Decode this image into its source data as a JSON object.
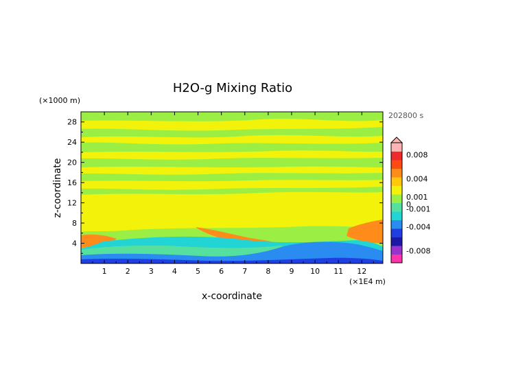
{
  "chart_data": {
    "type": "heatmap",
    "title": "H2O-g Mixing Ratio",
    "xlabel": "x-coordinate",
    "ylabel": "z-coordinate",
    "x_unit": "(×1E4 m)",
    "y_unit": "(×1000 m)",
    "time_label": "202800 s",
    "xlim": [
      0,
      12.9
    ],
    "ylim": [
      0,
      30
    ],
    "x_ticks": [
      "1",
      "2",
      "3",
      "4",
      "5",
      "6",
      "7",
      "8",
      "9",
      "10",
      "11",
      "12"
    ],
    "y_ticks": [
      "4",
      "8",
      "12",
      "16",
      "20",
      "24",
      "28"
    ],
    "colorbar": {
      "range": [
        -0.01,
        0.01
      ],
      "ticks": [
        "0.008",
        "0.004",
        "0.001",
        "0",
        "-0.001",
        "-0.004",
        "-0.008"
      ],
      "colors": [
        "#ff33aa",
        "#9933cc",
        "#1a1aa6",
        "#1f3fe0",
        "#2a8cf0",
        "#22d4d4",
        "#55e0a0",
        "#9bef44",
        "#f2f20a",
        "#ffc80a",
        "#ff8c1a",
        "#ff4a14",
        "#ee2a2a",
        "#ffb3b3"
      ]
    },
    "regions": [
      {
        "band": "z 0–2 km",
        "value": -0.004,
        "note": "blue layer near surface"
      },
      {
        "band": "z 2–4 km",
        "value": -0.001,
        "note": "cyan layer"
      },
      {
        "band": "z 4–6 km, x 0–1",
        "value": 0.004,
        "note": "orange patch"
      },
      {
        "band": "z 6–12 km",
        "value": 0.0005,
        "note": "yellow"
      },
      {
        "band": "z 12–30 km",
        "value": 0.0,
        "note": "alternating yellow and green bands"
      }
    ]
  }
}
